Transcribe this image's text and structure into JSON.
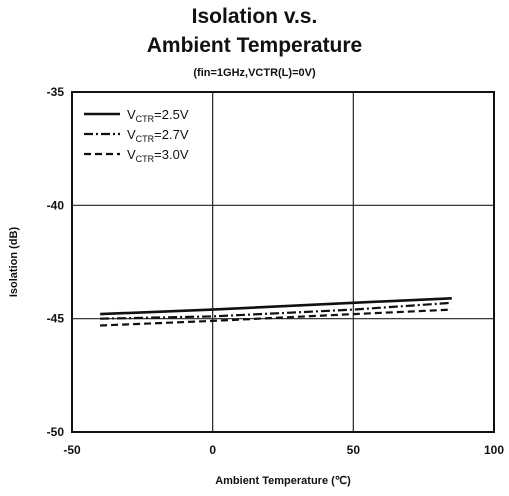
{
  "chart_data": {
    "type": "line",
    "title_line1": "Isolation v.s.",
    "title_line2": "Ambient Temperature",
    "subtitle": "(fin=1GHz,VCTR(L)=0V)",
    "xlabel": "Ambient Temperature (℃)",
    "ylabel": "Isolation (dB)",
    "xlim": [
      -50,
      100
    ],
    "ylim": [
      -50,
      -35
    ],
    "xticks": [
      -50,
      0,
      50,
      100
    ],
    "yticks": [
      -35,
      -40,
      -45,
      -50
    ],
    "xtick_labels": [
      "-50",
      "0",
      "50",
      "100"
    ],
    "ytick_labels": [
      "-35",
      "-40",
      "-45",
      "-50"
    ],
    "grid": true,
    "legend_position": "top-left",
    "series": [
      {
        "name": "V",
        "name_sub": "CTR",
        "name_suffix": "=2.5V",
        "dash": "solid",
        "x": [
          -40,
          0,
          50,
          85
        ],
        "y": [
          -44.8,
          -44.6,
          -44.3,
          -44.1
        ]
      },
      {
        "name": "V",
        "name_sub": "CTR",
        "name_suffix": "=2.7V",
        "dash": "dashdot",
        "x": [
          -40,
          0,
          50,
          85
        ],
        "y": [
          -45.0,
          -44.9,
          -44.6,
          -44.3
        ]
      },
      {
        "name": "V",
        "name_sub": "CTR",
        "name_suffix": "=3.0V",
        "dash": "dashed",
        "x": [
          -40,
          0,
          50,
          85
        ],
        "y": [
          -45.3,
          -45.1,
          -44.8,
          -44.6
        ]
      }
    ]
  }
}
